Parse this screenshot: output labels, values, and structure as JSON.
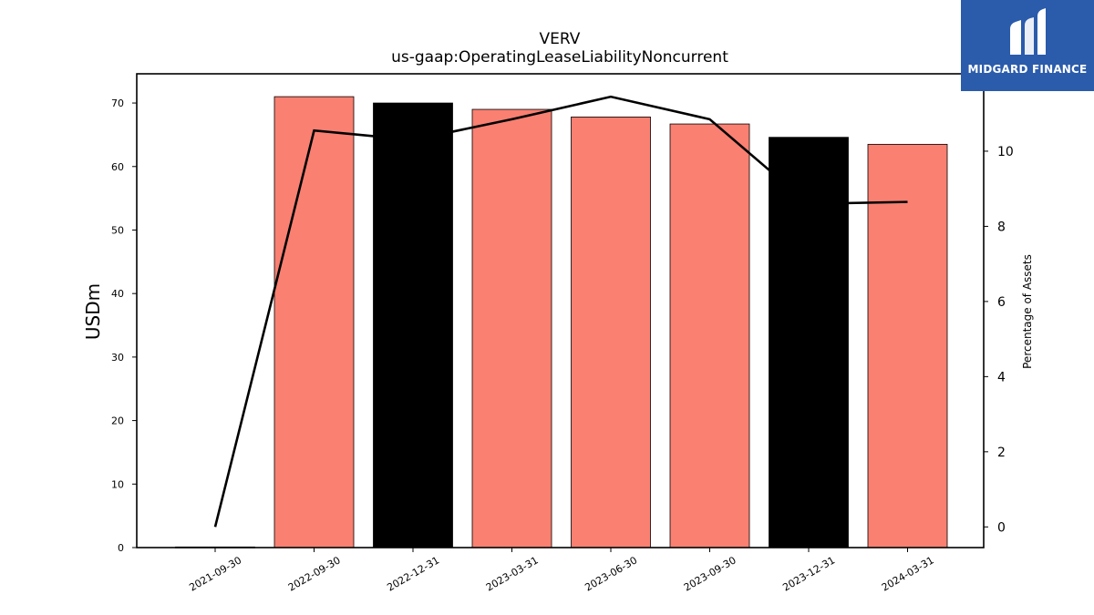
{
  "chart_data": {
    "type": "bar",
    "title": "VERV",
    "subtitle": "us-gaap:OperatingLeaseLiabilityNoncurrent",
    "ylabel": "USDm",
    "y2label": "Percentage of Assets",
    "categories": [
      "2021-09-30",
      "2022-09-30",
      "2022-12-31",
      "2023-03-31",
      "2023-06-30",
      "2023-09-30",
      "2023-12-31",
      "2024-03-31"
    ],
    "series": [
      {
        "values": [
          0.1,
          71.0,
          70.0,
          69.0,
          67.8,
          66.7,
          64.6,
          63.5
        ],
        "colors": [
          "#fa8072",
          "#fa8072",
          "#000000",
          "#fa8072",
          "#fa8072",
          "#fa8072",
          "#000000",
          "#fa8072"
        ]
      },
      {
        "axis": "right",
        "type": "line",
        "color": "#000000",
        "values": [
          0.0,
          10.55,
          10.3,
          10.85,
          11.45,
          10.85,
          8.6,
          8.65
        ]
      }
    ],
    "ylim": [
      0,
      74.6
    ],
    "y2lim": [
      -0.55,
      12.06
    ],
    "yticks": [
      0,
      10,
      20,
      30,
      40,
      50,
      60,
      70
    ],
    "y2ticks": [
      0,
      2,
      4,
      6,
      8,
      10
    ],
    "grid": false
  },
  "logo": {
    "text": "MIDGARD FINANCE",
    "bg": "#2b5bab"
  }
}
